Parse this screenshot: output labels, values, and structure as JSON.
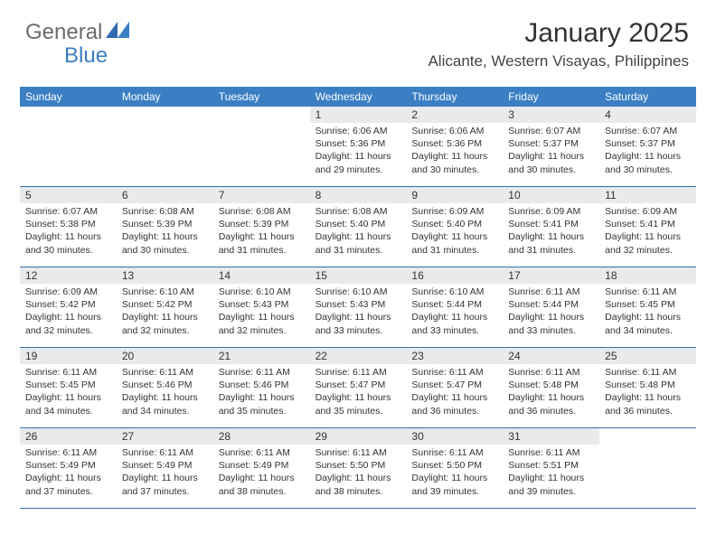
{
  "logo": {
    "text1": "General",
    "text2": "Blue"
  },
  "header": {
    "month_title": "January 2025",
    "location": "Alicante, Western Visayas, Philippines"
  },
  "colors": {
    "header_bg": "#3a7fc4",
    "header_text": "#ffffff",
    "daynum_bg": "#e9eaec",
    "week_border": "#3a6fa8",
    "logo_gray": "#6b6b6b",
    "logo_blue": "#3a7fc4"
  },
  "weekdays": [
    "Sunday",
    "Monday",
    "Tuesday",
    "Wednesday",
    "Thursday",
    "Friday",
    "Saturday"
  ],
  "weeks": [
    [
      {
        "n": "",
        "lines": []
      },
      {
        "n": "",
        "lines": []
      },
      {
        "n": "",
        "lines": []
      },
      {
        "n": "1",
        "lines": [
          "Sunrise: 6:06 AM",
          "Sunset: 5:36 PM",
          "Daylight: 11 hours",
          "and 29 minutes."
        ]
      },
      {
        "n": "2",
        "lines": [
          "Sunrise: 6:06 AM",
          "Sunset: 5:36 PM",
          "Daylight: 11 hours",
          "and 30 minutes."
        ]
      },
      {
        "n": "3",
        "lines": [
          "Sunrise: 6:07 AM",
          "Sunset: 5:37 PM",
          "Daylight: 11 hours",
          "and 30 minutes."
        ]
      },
      {
        "n": "4",
        "lines": [
          "Sunrise: 6:07 AM",
          "Sunset: 5:37 PM",
          "Daylight: 11 hours",
          "and 30 minutes."
        ]
      }
    ],
    [
      {
        "n": "5",
        "lines": [
          "Sunrise: 6:07 AM",
          "Sunset: 5:38 PM",
          "Daylight: 11 hours",
          "and 30 minutes."
        ]
      },
      {
        "n": "6",
        "lines": [
          "Sunrise: 6:08 AM",
          "Sunset: 5:39 PM",
          "Daylight: 11 hours",
          "and 30 minutes."
        ]
      },
      {
        "n": "7",
        "lines": [
          "Sunrise: 6:08 AM",
          "Sunset: 5:39 PM",
          "Daylight: 11 hours",
          "and 31 minutes."
        ]
      },
      {
        "n": "8",
        "lines": [
          "Sunrise: 6:08 AM",
          "Sunset: 5:40 PM",
          "Daylight: 11 hours",
          "and 31 minutes."
        ]
      },
      {
        "n": "9",
        "lines": [
          "Sunrise: 6:09 AM",
          "Sunset: 5:40 PM",
          "Daylight: 11 hours",
          "and 31 minutes."
        ]
      },
      {
        "n": "10",
        "lines": [
          "Sunrise: 6:09 AM",
          "Sunset: 5:41 PM",
          "Daylight: 11 hours",
          "and 31 minutes."
        ]
      },
      {
        "n": "11",
        "lines": [
          "Sunrise: 6:09 AM",
          "Sunset: 5:41 PM",
          "Daylight: 11 hours",
          "and 32 minutes."
        ]
      }
    ],
    [
      {
        "n": "12",
        "lines": [
          "Sunrise: 6:09 AM",
          "Sunset: 5:42 PM",
          "Daylight: 11 hours",
          "and 32 minutes."
        ]
      },
      {
        "n": "13",
        "lines": [
          "Sunrise: 6:10 AM",
          "Sunset: 5:42 PM",
          "Daylight: 11 hours",
          "and 32 minutes."
        ]
      },
      {
        "n": "14",
        "lines": [
          "Sunrise: 6:10 AM",
          "Sunset: 5:43 PM",
          "Daylight: 11 hours",
          "and 32 minutes."
        ]
      },
      {
        "n": "15",
        "lines": [
          "Sunrise: 6:10 AM",
          "Sunset: 5:43 PM",
          "Daylight: 11 hours",
          "and 33 minutes."
        ]
      },
      {
        "n": "16",
        "lines": [
          "Sunrise: 6:10 AM",
          "Sunset: 5:44 PM",
          "Daylight: 11 hours",
          "and 33 minutes."
        ]
      },
      {
        "n": "17",
        "lines": [
          "Sunrise: 6:11 AM",
          "Sunset: 5:44 PM",
          "Daylight: 11 hours",
          "and 33 minutes."
        ]
      },
      {
        "n": "18",
        "lines": [
          "Sunrise: 6:11 AM",
          "Sunset: 5:45 PM",
          "Daylight: 11 hours",
          "and 34 minutes."
        ]
      }
    ],
    [
      {
        "n": "19",
        "lines": [
          "Sunrise: 6:11 AM",
          "Sunset: 5:45 PM",
          "Daylight: 11 hours",
          "and 34 minutes."
        ]
      },
      {
        "n": "20",
        "lines": [
          "Sunrise: 6:11 AM",
          "Sunset: 5:46 PM",
          "Daylight: 11 hours",
          "and 34 minutes."
        ]
      },
      {
        "n": "21",
        "lines": [
          "Sunrise: 6:11 AM",
          "Sunset: 5:46 PM",
          "Daylight: 11 hours",
          "and 35 minutes."
        ]
      },
      {
        "n": "22",
        "lines": [
          "Sunrise: 6:11 AM",
          "Sunset: 5:47 PM",
          "Daylight: 11 hours",
          "and 35 minutes."
        ]
      },
      {
        "n": "23",
        "lines": [
          "Sunrise: 6:11 AM",
          "Sunset: 5:47 PM",
          "Daylight: 11 hours",
          "and 36 minutes."
        ]
      },
      {
        "n": "24",
        "lines": [
          "Sunrise: 6:11 AM",
          "Sunset: 5:48 PM",
          "Daylight: 11 hours",
          "and 36 minutes."
        ]
      },
      {
        "n": "25",
        "lines": [
          "Sunrise: 6:11 AM",
          "Sunset: 5:48 PM",
          "Daylight: 11 hours",
          "and 36 minutes."
        ]
      }
    ],
    [
      {
        "n": "26",
        "lines": [
          "Sunrise: 6:11 AM",
          "Sunset: 5:49 PM",
          "Daylight: 11 hours",
          "and 37 minutes."
        ]
      },
      {
        "n": "27",
        "lines": [
          "Sunrise: 6:11 AM",
          "Sunset: 5:49 PM",
          "Daylight: 11 hours",
          "and 37 minutes."
        ]
      },
      {
        "n": "28",
        "lines": [
          "Sunrise: 6:11 AM",
          "Sunset: 5:49 PM",
          "Daylight: 11 hours",
          "and 38 minutes."
        ]
      },
      {
        "n": "29",
        "lines": [
          "Sunrise: 6:11 AM",
          "Sunset: 5:50 PM",
          "Daylight: 11 hours",
          "and 38 minutes."
        ]
      },
      {
        "n": "30",
        "lines": [
          "Sunrise: 6:11 AM",
          "Sunset: 5:50 PM",
          "Daylight: 11 hours",
          "and 39 minutes."
        ]
      },
      {
        "n": "31",
        "lines": [
          "Sunrise: 6:11 AM",
          "Sunset: 5:51 PM",
          "Daylight: 11 hours",
          "and 39 minutes."
        ]
      },
      {
        "n": "",
        "lines": []
      }
    ]
  ]
}
